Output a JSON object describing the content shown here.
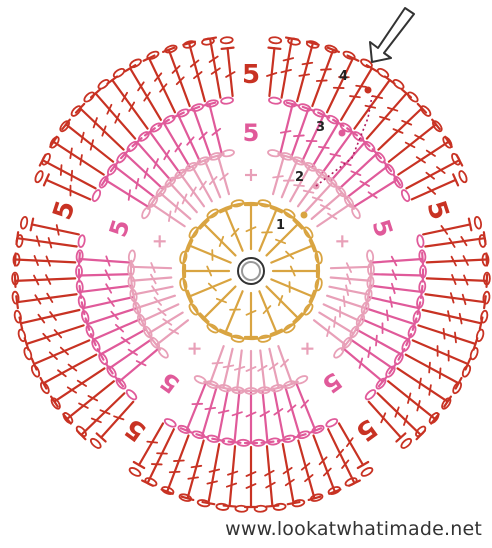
{
  "colors": {
    "round1": "#d9a441",
    "round2": "#e8a0b8",
    "round3": "#e05a9a",
    "round4": "#c83223",
    "center_ring": "#999999",
    "arrow": "#333333",
    "label_text": "#222222"
  },
  "rounds": [
    {
      "label": "1",
      "color_key": "round1"
    },
    {
      "label": "2",
      "color_key": "round2"
    },
    {
      "label": "3",
      "color_key": "round3"
    },
    {
      "label": "4",
      "color_key": "round4"
    }
  ],
  "symbols": {
    "center": "magic-ring",
    "start_arrow": "outline-arrow-icon",
    "round_start_marker": "dot-marker-icon"
  },
  "watermark": "www.lookatwhatimade.net"
}
